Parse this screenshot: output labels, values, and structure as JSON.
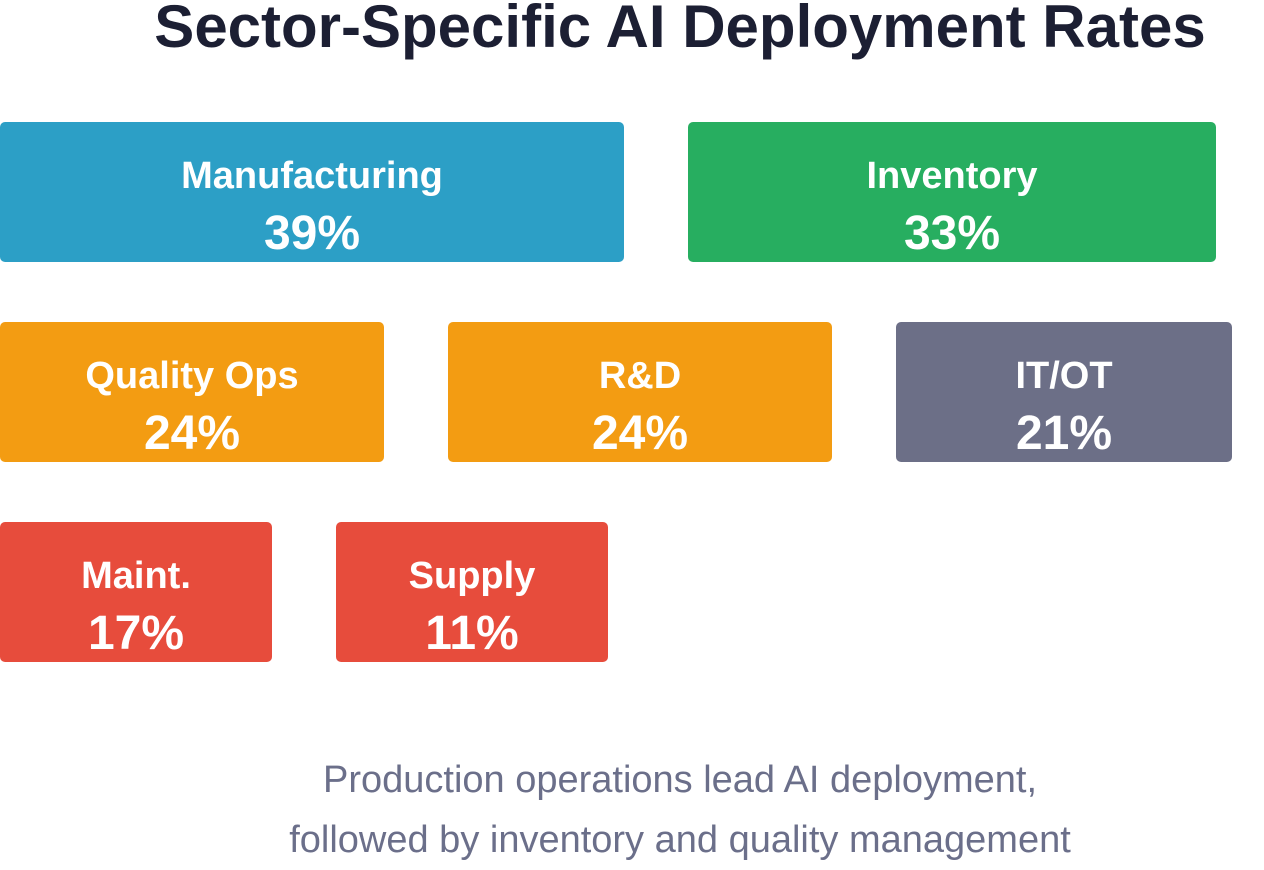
{
  "chart_data": {
    "type": "tile",
    "title": "Sector-Specific AI Deployment Rates",
    "categories": [
      "Manufacturing",
      "Inventory",
      "Quality Ops",
      "R&D",
      "IT/OT",
      "Maint.",
      "Supply"
    ],
    "values": [
      39,
      33,
      24,
      24,
      21,
      17,
      11
    ],
    "value_labels": [
      "39%",
      "33%",
      "24%",
      "24%",
      "21%",
      "17%",
      "11%"
    ],
    "colors": [
      "#2c9fc6",
      "#27ae60",
      "#f39c12",
      "#f39c12",
      "#6c6f87",
      "#e74c3c",
      "#e74c3c"
    ],
    "footnote": [
      "Production operations lead AI deployment,",
      "followed by inventory and quality management"
    ]
  }
}
